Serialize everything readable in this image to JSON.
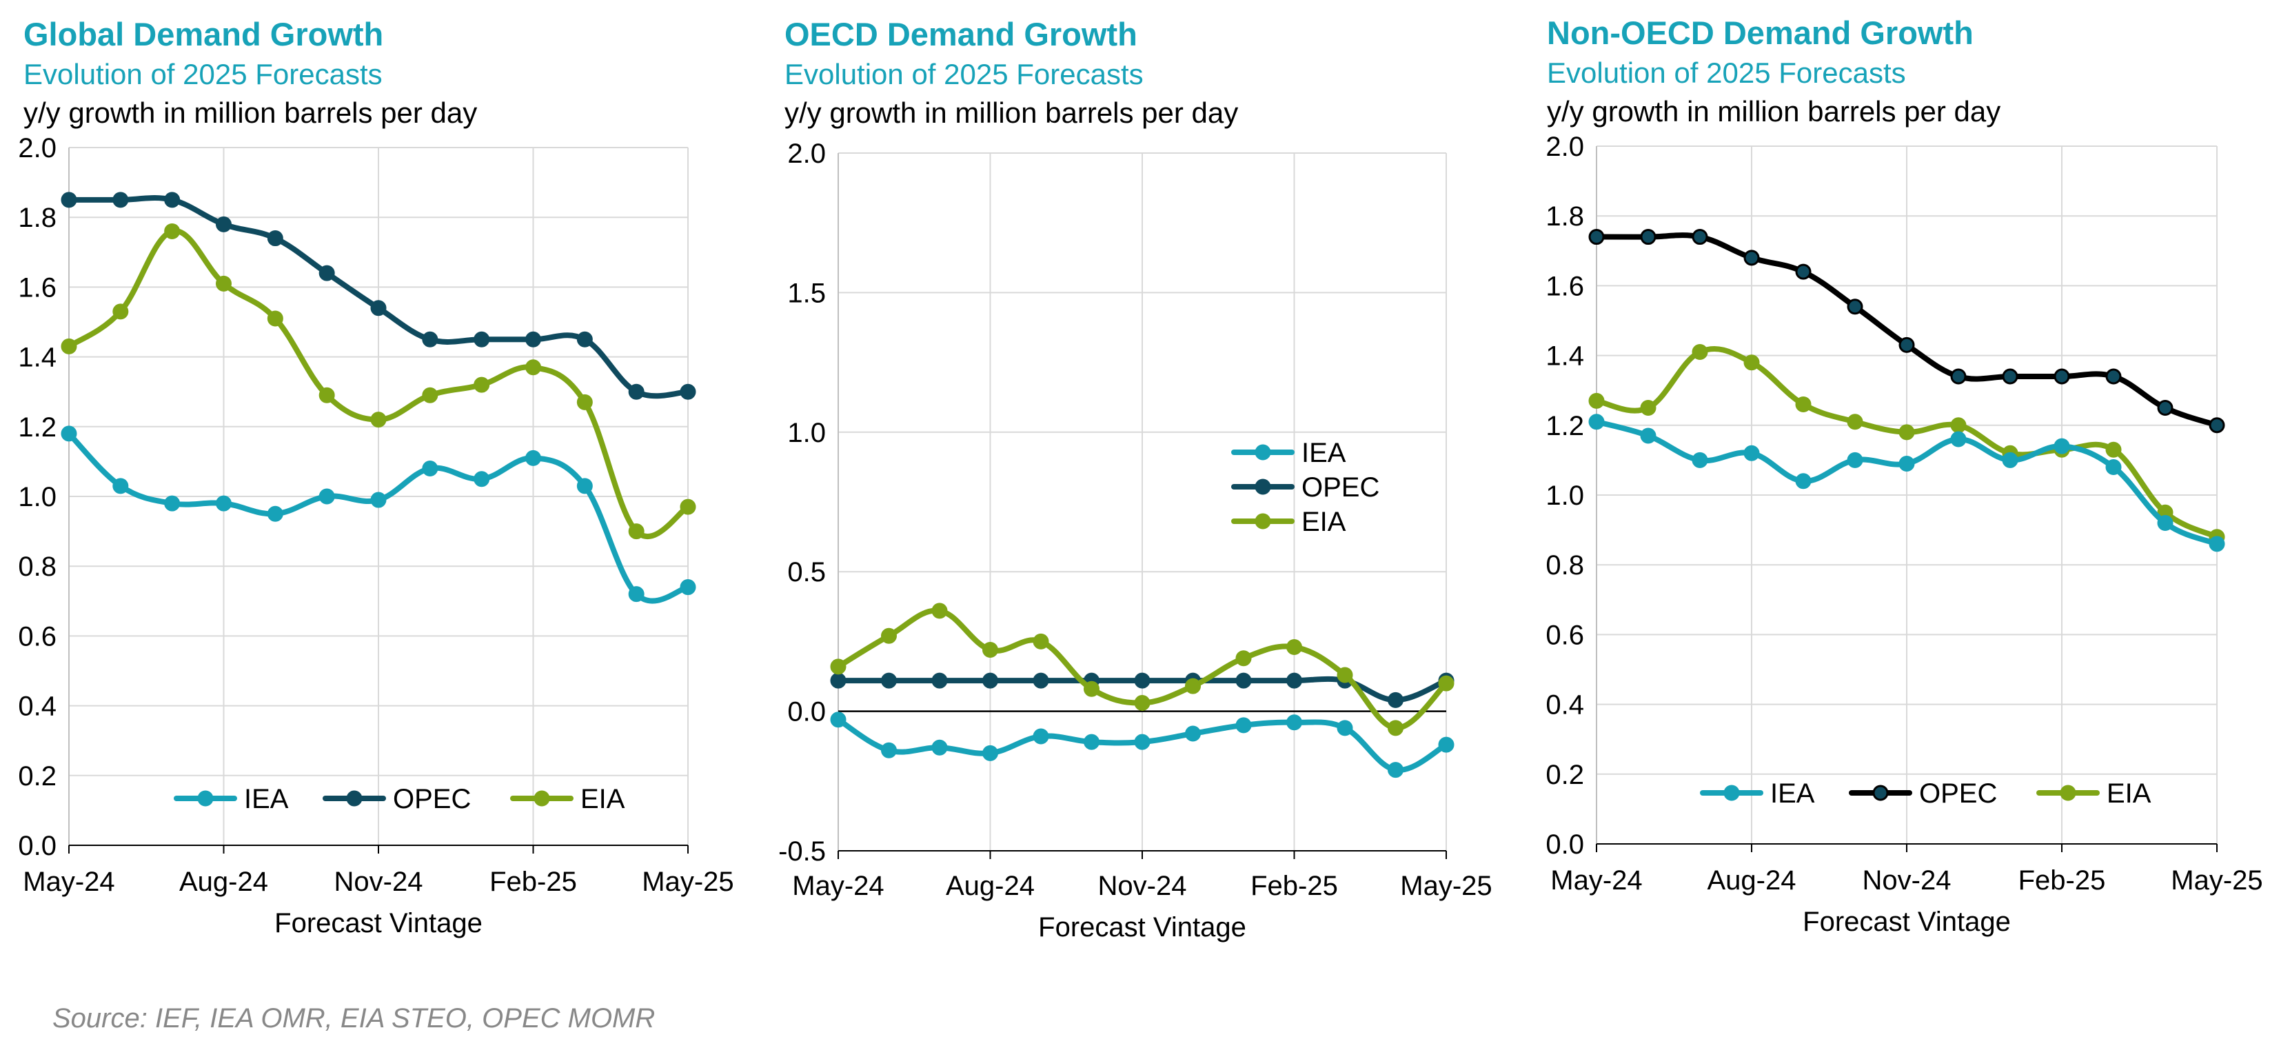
{
  "source": "Source: IEF, IEA OMR, EIA STEO, OPEC MOMR",
  "colors": {
    "IEA": "#17A2B8",
    "OPEC": "#0F4A5E",
    "EIA": "#7FA516",
    "OPEC_nonoecd": "#000000",
    "title": "#17A2B8"
  },
  "chart_data": [
    {
      "type": "line",
      "title": "Global Demand Growth",
      "subtitle": "Evolution of 2025 Forecasts",
      "unit": "y/y growth in million barrels per day",
      "xlabel": "Forecast Vintage",
      "ylabel": "",
      "x": [
        "May-24",
        "Jun-24",
        "Jul-24",
        "Aug-24",
        "Sep-24",
        "Oct-24",
        "Nov-24",
        "Dec-24",
        "Jan-25",
        "Feb-25",
        "Mar-25",
        "Apr-25",
        "May-25"
      ],
      "xtick_labels": [
        "May-24",
        "Aug-24",
        "Nov-24",
        "Feb-25",
        "May-25"
      ],
      "ylim": [
        0,
        2.0
      ],
      "yticks": [
        "0.0",
        "0.2",
        "0.4",
        "0.6",
        "0.8",
        "1.0",
        "1.2",
        "1.4",
        "1.6",
        "1.8",
        "2.0"
      ],
      "grid": true,
      "legend_position": "bottom-center",
      "series": [
        {
          "name": "IEA",
          "values": [
            1.18,
            1.03,
            0.98,
            0.98,
            0.95,
            1.0,
            0.99,
            1.08,
            1.05,
            1.11,
            1.03,
            0.72,
            0.74
          ]
        },
        {
          "name": "OPEC",
          "values": [
            1.85,
            1.85,
            1.85,
            1.78,
            1.74,
            1.64,
            1.54,
            1.45,
            1.45,
            1.45,
            1.45,
            1.3,
            1.3
          ]
        },
        {
          "name": "EIA",
          "values": [
            1.43,
            1.53,
            1.76,
            1.61,
            1.51,
            1.29,
            1.22,
            1.29,
            1.32,
            1.37,
            1.27,
            0.9,
            0.97
          ]
        }
      ]
    },
    {
      "type": "line",
      "title": "OECD Demand Growth",
      "subtitle": "Evolution of 2025 Forecasts",
      "unit": "y/y growth in million barrels per day",
      "xlabel": "Forecast Vintage",
      "ylabel": "",
      "x": [
        "May-24",
        "Jun-24",
        "Jul-24",
        "Aug-24",
        "Sep-24",
        "Oct-24",
        "Nov-24",
        "Dec-24",
        "Jan-25",
        "Feb-25",
        "Mar-25",
        "Apr-25",
        "May-25"
      ],
      "xtick_labels": [
        "May-24",
        "Aug-24",
        "Nov-24",
        "Feb-25",
        "May-25"
      ],
      "ylim": [
        -0.5,
        2.0
      ],
      "yticks": [
        "-0.5",
        "0.0",
        "0.5",
        "1.0",
        "1.5",
        "2.0"
      ],
      "grid": true,
      "legend_position": "middle-right",
      "series": [
        {
          "name": "IEA",
          "values": [
            -0.03,
            -0.14,
            -0.13,
            -0.15,
            -0.09,
            -0.11,
            -0.11,
            -0.08,
            -0.05,
            -0.04,
            -0.06,
            -0.21,
            -0.12
          ]
        },
        {
          "name": "OPEC",
          "values": [
            0.11,
            0.11,
            0.11,
            0.11,
            0.11,
            0.11,
            0.11,
            0.11,
            0.11,
            0.11,
            0.11,
            0.04,
            0.11
          ]
        },
        {
          "name": "EIA",
          "values": [
            0.16,
            0.27,
            0.36,
            0.22,
            0.25,
            0.08,
            0.03,
            0.09,
            0.19,
            0.23,
            0.13,
            -0.06,
            0.1
          ]
        }
      ]
    },
    {
      "type": "line",
      "title": "Non-OECD Demand Growth",
      "subtitle": "Evolution of 2025 Forecasts",
      "unit": "y/y growth in million barrels per day",
      "xlabel": "Forecast Vintage",
      "ylabel": "",
      "x": [
        "May-24",
        "Jun-24",
        "Jul-24",
        "Aug-24",
        "Sep-24",
        "Oct-24",
        "Nov-24",
        "Dec-24",
        "Jan-25",
        "Feb-25",
        "Mar-25",
        "Apr-25",
        "May-25"
      ],
      "xtick_labels": [
        "May-24",
        "Aug-24",
        "Nov-24",
        "Feb-25",
        "May-25"
      ],
      "ylim": [
        0,
        2.0
      ],
      "yticks": [
        "0.0",
        "0.2",
        "0.4",
        "0.6",
        "0.8",
        "1.0",
        "1.2",
        "1.4",
        "1.6",
        "1.8",
        "2.0"
      ],
      "grid": true,
      "legend_position": "bottom-center",
      "series": [
        {
          "name": "IEA",
          "values": [
            1.21,
            1.17,
            1.1,
            1.12,
            1.04,
            1.1,
            1.09,
            1.16,
            1.1,
            1.14,
            1.08,
            0.92,
            0.86
          ]
        },
        {
          "name": "OPEC",
          "values": [
            1.74,
            1.74,
            1.74,
            1.68,
            1.64,
            1.54,
            1.43,
            1.34,
            1.34,
            1.34,
            1.34,
            1.25,
            1.2
          ]
        },
        {
          "name": "EIA",
          "values": [
            1.27,
            1.25,
            1.41,
            1.38,
            1.26,
            1.21,
            1.18,
            1.2,
            1.12,
            1.13,
            1.13,
            0.95,
            0.88
          ]
        }
      ]
    }
  ]
}
